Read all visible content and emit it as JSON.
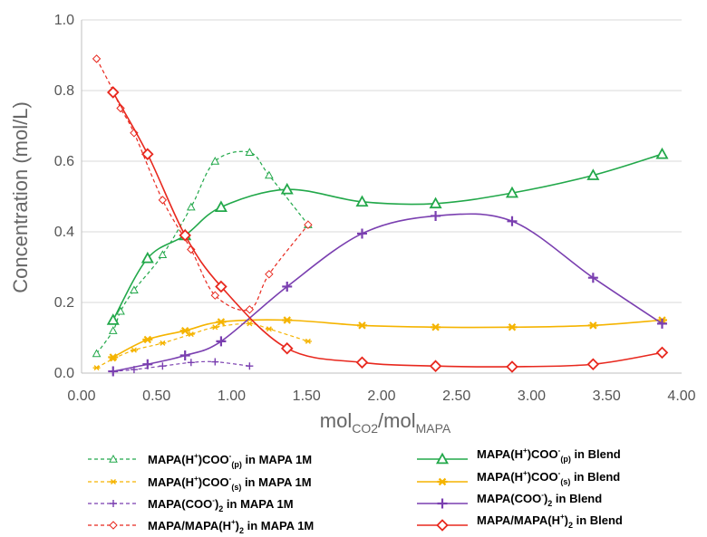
{
  "chart_data": {
    "type": "line",
    "xlabel": {
      "main": "mol",
      "sub1": "CO2",
      "mid": "/mol",
      "sub2": "MAPA"
    },
    "ylabel": "Concentration (mol/L)",
    "xlim": [
      0,
      4
    ],
    "ylim": [
      0,
      1
    ],
    "x_tick_labels": [
      "0.00",
      "0.50",
      "1.00",
      "1.50",
      "2.00",
      "2.50",
      "3.00",
      "3.50",
      "4.00"
    ],
    "y_tick_labels": [
      "0.0",
      "0.2",
      "0.4",
      "0.6",
      "0.8",
      "1.0"
    ],
    "grid": "horizontal",
    "legend_position": "bottom",
    "series": [
      {
        "name": "MAPA(H+)COO-(p) in MAPA 1M",
        "legend": {
          "base": "MAPA(H",
          "sup1": "+",
          "mid": ")COO",
          "sup2": "-",
          "sub": "(p)",
          "rest": " in MAPA 1M"
        },
        "color": "#22a84a",
        "dash": true,
        "marker": "triangle",
        "x": [
          0.1,
          0.21,
          0.26,
          0.35,
          0.54,
          0.73,
          0.89,
          1.12,
          1.25,
          1.51
        ],
        "y": [
          0.055,
          0.12,
          0.175,
          0.235,
          0.335,
          0.47,
          0.6,
          0.625,
          0.56,
          0.42
        ]
      },
      {
        "name": "MAPA(H+)COO-(s) in MAPA 1M",
        "legend": {
          "base": "MAPA(H",
          "sup1": "+",
          "mid": ")COO",
          "sup2": "-",
          "sub": "(s)",
          "rest": " in MAPA 1M"
        },
        "color": "#f5b400",
        "dash": true,
        "marker": "star",
        "x": [
          0.1,
          0.21,
          0.35,
          0.54,
          0.73,
          0.89,
          1.12,
          1.25,
          1.51
        ],
        "y": [
          0.015,
          0.04,
          0.065,
          0.085,
          0.11,
          0.13,
          0.14,
          0.125,
          0.09
        ]
      },
      {
        "name": "MAPA(COO-)2 in MAPA 1M",
        "legend": {
          "base": "MAPA(COO",
          "sup1": "-",
          "mid": ")",
          "sup2": "",
          "sub": "2",
          "rest": " in MAPA 1M"
        },
        "color": "#7a3fb0",
        "dash": true,
        "marker": "plus",
        "x": [
          0.21,
          0.35,
          0.54,
          0.73,
          0.89,
          1.12
        ],
        "y": [
          0.005,
          0.01,
          0.02,
          0.03,
          0.032,
          0.02
        ]
      },
      {
        "name": "MAPA/MAPA(H+)2 in MAPA 1M",
        "legend": {
          "base": "MAPA/MAPA(H",
          "sup1": "+",
          "mid": ")",
          "sup2": "",
          "sub": "2",
          "rest": "  in MAPA 1M"
        },
        "color": "#e8281e",
        "dash": true,
        "marker": "diamond",
        "x": [
          0.1,
          0.21,
          0.26,
          0.35,
          0.54,
          0.73,
          0.89,
          1.12,
          1.25,
          1.51
        ],
        "y": [
          0.89,
          0.8,
          0.75,
          0.68,
          0.49,
          0.35,
          0.22,
          0.18,
          0.28,
          0.42
        ]
      },
      {
        "name": "MAPA(H+)COO-(p) in Blend",
        "legend": {
          "base": "MAPA(H",
          "sup1": "+",
          "mid": ")COO",
          "sup2": "-",
          "sub": "(p)",
          "rest": " in Blend"
        },
        "color": "#22a84a",
        "dash": false,
        "marker": "triangle",
        "x": [
          0.21,
          0.44,
          0.69,
          0.93,
          1.37,
          1.87,
          2.36,
          2.87,
          3.41,
          3.87
        ],
        "y": [
          0.15,
          0.325,
          0.39,
          0.47,
          0.52,
          0.485,
          0.48,
          0.51,
          0.56,
          0.62
        ]
      },
      {
        "name": "MAPA(H+)COO-(s) in Blend",
        "legend": {
          "base": "MAPA(H",
          "sup1": "+",
          "mid": ")COO",
          "sup2": "-",
          "sub": "(s)",
          "rest": " in Blend"
        },
        "color": "#f5b400",
        "dash": false,
        "marker": "star",
        "x": [
          0.21,
          0.44,
          0.69,
          0.93,
          1.37,
          1.87,
          2.36,
          2.87,
          3.41,
          3.87
        ],
        "y": [
          0.045,
          0.095,
          0.12,
          0.145,
          0.15,
          0.135,
          0.13,
          0.13,
          0.135,
          0.15
        ]
      },
      {
        "name": "MAPA(COO-)2 in Blend",
        "legend": {
          "base": "MAPA(COO",
          "sup1": "-",
          "mid": ")",
          "sup2": "",
          "sub": "2",
          "rest": " in Blend"
        },
        "color": "#7a3fb0",
        "dash": false,
        "marker": "plus",
        "x": [
          0.21,
          0.44,
          0.69,
          0.93,
          1.37,
          1.87,
          2.36,
          2.87,
          3.41,
          3.87
        ],
        "y": [
          0.005,
          0.025,
          0.05,
          0.09,
          0.245,
          0.395,
          0.445,
          0.43,
          0.27,
          0.14
        ]
      },
      {
        "name": "MAPA/MAPA(H+)2 in Blend",
        "legend": {
          "base": "MAPA/MAPA(H",
          "sup1": "+",
          "mid": ")",
          "sup2": "",
          "sub": "2",
          "rest": "  in Blend"
        },
        "color": "#e8281e",
        "dash": false,
        "marker": "diamond",
        "x": [
          0.21,
          0.44,
          0.69,
          0.93,
          1.37,
          1.87,
          2.36,
          2.87,
          3.41,
          3.87
        ],
        "y": [
          0.795,
          0.62,
          0.39,
          0.245,
          0.07,
          0.03,
          0.02,
          0.018,
          0.025,
          0.058
        ]
      }
    ]
  }
}
